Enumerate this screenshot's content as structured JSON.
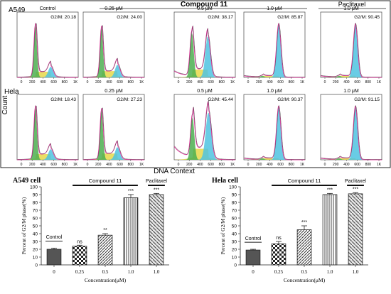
{
  "colors": {
    "green": "#4caf50",
    "yellow": "#e6d84a",
    "cyan": "#4fc3e0",
    "magenta": "#e0329a",
    "gray": "#555555",
    "black": "#111111"
  },
  "top": {
    "group_compound": "Compound 11",
    "group_paclitaxel": "Paclitaxel",
    "xlabel": "DNA Context",
    "ylabel": "Count",
    "rows": [
      "A549",
      "Hela"
    ],
    "xticks": [
      "0",
      "200",
      "400",
      "600",
      "800",
      "1K"
    ],
    "panels": [
      {
        "col": 0,
        "row": 0,
        "title": "Control",
        "g2m": "G2/M: 20.18",
        "mode": "ctrl"
      },
      {
        "col": 1,
        "row": 0,
        "title": "0.25 μM",
        "g2m": "G2/M: 24.00",
        "mode": "low"
      },
      {
        "col": 2,
        "row": 0,
        "title": "0.5 μM",
        "g2m": "G2/M: 38.17",
        "mode": "mid"
      },
      {
        "col": 3,
        "row": 0,
        "title": "1.0 μM",
        "g2m": "G2/M: 85.87",
        "mode": "high"
      },
      {
        "col": 4,
        "row": 0,
        "title": "1.0 μM",
        "g2m": "G2/M: 90.45",
        "mode": "high"
      },
      {
        "col": 0,
        "row": 1,
        "title": "",
        "g2m": "G2/M: 18.43",
        "mode": "ctrl"
      },
      {
        "col": 1,
        "row": 1,
        "title": "0.25 μM",
        "g2m": "G2/M: 27.23",
        "mode": "low"
      },
      {
        "col": 2,
        "row": 1,
        "title": "0.5 μM",
        "g2m": "G2/M: 45.44",
        "mode": "mid2"
      },
      {
        "col": 3,
        "row": 1,
        "title": "1.0 μM",
        "g2m": "G2/M: 90.37",
        "mode": "high"
      },
      {
        "col": 4,
        "row": 1,
        "title": "1.0 μM",
        "g2m": "G2/M: 91.15",
        "mode": "high"
      }
    ]
  },
  "chart_data": [
    {
      "type": "bar",
      "title": "A549 cell",
      "xlabel": "Concentration(μM)",
      "ylabel": "Percent of G2/M phase(%)",
      "categories": [
        "0",
        "0.25",
        "0.5",
        "1.0",
        "1.0"
      ],
      "values": [
        20,
        24,
        38,
        86,
        90
      ],
      "errors": [
        1.5,
        1.2,
        2,
        4,
        1.5
      ],
      "significance": [
        "",
        "ns",
        "**",
        "***",
        "***"
      ],
      "ylim": [
        0,
        100
      ],
      "yticks": [
        0,
        10,
        20,
        30,
        40,
        50,
        60,
        70,
        80,
        90,
        100
      ],
      "patterns": [
        "solid",
        "checker",
        "diagonal",
        "vertical",
        "diagonal2"
      ],
      "group_labels": {
        "control": "Control",
        "compound": "Compound 11",
        "paclitaxel": "Paclitaxel"
      }
    },
    {
      "type": "bar",
      "title": "Hela cell",
      "xlabel": "Concentration(μM)",
      "ylabel": "Percent of G2/M phase(%)",
      "categories": [
        "0",
        "0.25",
        "0.5",
        "1.0",
        "1.0"
      ],
      "values": [
        19,
        27,
        45,
        90,
        91
      ],
      "errors": [
        1,
        3,
        5,
        1.5,
        1.5
      ],
      "significance": [
        "",
        "ns",
        "***",
        "***",
        "***"
      ],
      "ylim": [
        0,
        100
      ],
      "yticks": [
        0,
        10,
        20,
        30,
        40,
        50,
        60,
        70,
        80,
        90,
        100
      ],
      "patterns": [
        "solid",
        "checker",
        "diagonal",
        "vertical",
        "diagonal2"
      ],
      "group_labels": {
        "control": "Control",
        "compound": "Compound 11",
        "paclitaxel": "Paclitaxel"
      }
    }
  ]
}
